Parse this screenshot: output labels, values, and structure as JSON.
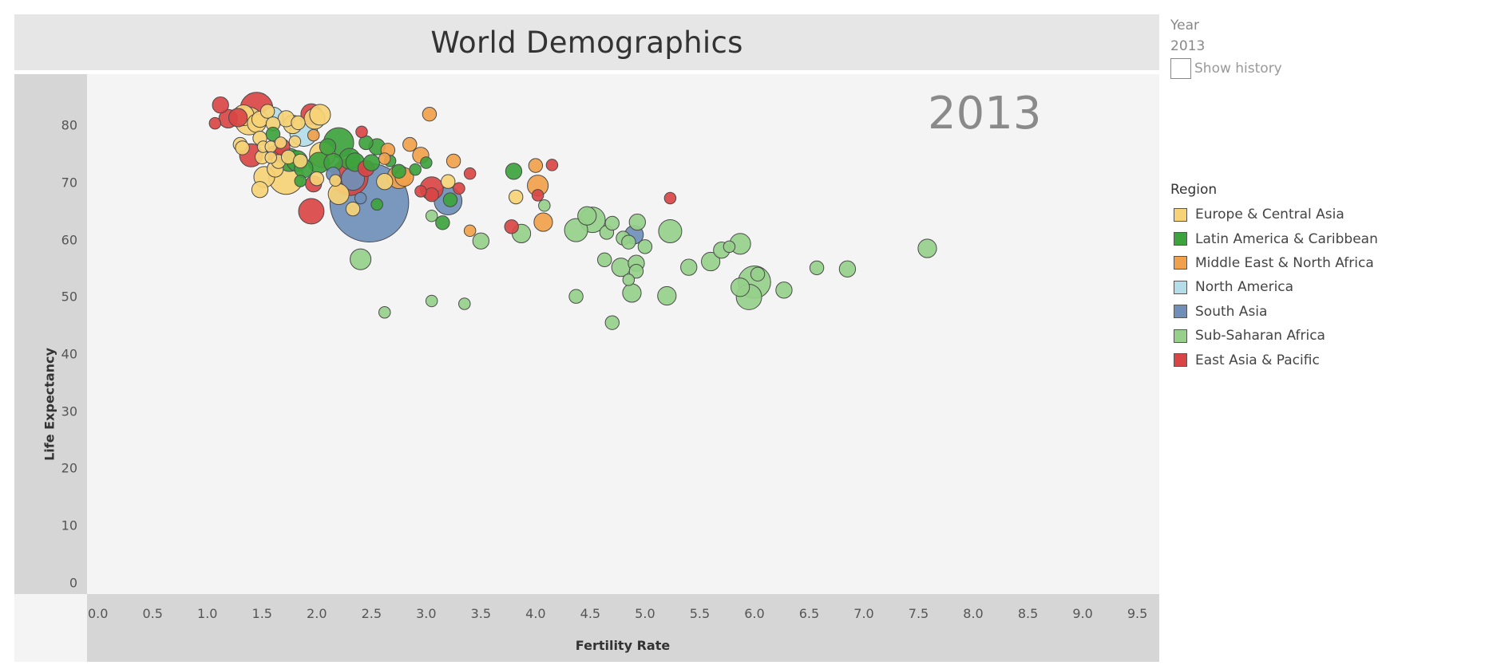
{
  "header": {
    "title": "World Demographics"
  },
  "filters": {
    "year_label": "Year",
    "year_value": "2013",
    "show_history_label": "Show history",
    "show_history_checked": false
  },
  "watermark_year": "2013",
  "legend": {
    "title": "Region",
    "items": [
      {
        "name": "Europe & Central Asia",
        "color": "#f6d376"
      },
      {
        "name": "Latin America & Caribbean",
        "color": "#3da33d"
      },
      {
        "name": "Middle East & North Africa",
        "color": "#f1a14b"
      },
      {
        "name": "North America",
        "color": "#b3dde8"
      },
      {
        "name": "South Asia",
        "color": "#6f8fb8"
      },
      {
        "name": "Sub-Saharan Africa",
        "color": "#96d08a"
      },
      {
        "name": "East Asia & Pacific",
        "color": "#d94545"
      }
    ]
  },
  "chart_data": {
    "type": "scatter",
    "title": "World Demographics",
    "xlabel": "Fertility Rate",
    "ylabel": "Life Expectancy",
    "xlim": [
      -0.1,
      9.7
    ],
    "ylim": [
      -2,
      89
    ],
    "x_ticks": [
      "0.0",
      "0.5",
      "1.0",
      "1.5",
      "2.0",
      "2.5",
      "3.0",
      "3.5",
      "4.0",
      "4.5",
      "5.0",
      "5.5",
      "6.0",
      "6.5",
      "7.0",
      "7.5",
      "8.0",
      "8.5",
      "9.0",
      "9.5"
    ],
    "y_ticks": [
      "0",
      "10",
      "20",
      "30",
      "40",
      "50",
      "60",
      "70",
      "80"
    ],
    "size_encoding": "population",
    "points": [
      {
        "region": "South Asia",
        "x": 2.48,
        "y": 66.5,
        "size": 34
      },
      {
        "region": "South Asia",
        "x": 3.2,
        "y": 66.8,
        "size": 12
      },
      {
        "region": "South Asia",
        "x": 2.33,
        "y": 70.7,
        "size": 10
      },
      {
        "region": "South Asia",
        "x": 2.4,
        "y": 67.3,
        "size": 5
      },
      {
        "region": "South Asia",
        "x": 4.9,
        "y": 60.9,
        "size": 8
      },
      {
        "region": "South Asia",
        "x": 2.15,
        "y": 71.5,
        "size": 6
      },
      {
        "region": "North America",
        "x": 1.88,
        "y": 78.8,
        "size": 12
      },
      {
        "region": "North America",
        "x": 1.6,
        "y": 81.4,
        "size": 9
      },
      {
        "region": "East Asia & Pacific",
        "x": 1.45,
        "y": 83.0,
        "size": 14
      },
      {
        "region": "East Asia & Pacific",
        "x": 1.12,
        "y": 83.6,
        "size": 7
      },
      {
        "region": "East Asia & Pacific",
        "x": 1.07,
        "y": 80.4,
        "size": 5
      },
      {
        "region": "East Asia & Pacific",
        "x": 1.19,
        "y": 81.2,
        "size": 8
      },
      {
        "region": "East Asia & Pacific",
        "x": 1.28,
        "y": 81.4,
        "size": 8
      },
      {
        "region": "East Asia & Pacific",
        "x": 1.95,
        "y": 82.0,
        "size": 9
      },
      {
        "region": "East Asia & Pacific",
        "x": 2.41,
        "y": 78.9,
        "size": 5
      },
      {
        "region": "East Asia & Pacific",
        "x": 1.62,
        "y": 75.1,
        "size": 7
      },
      {
        "region": "East Asia & Pacific",
        "x": 1.68,
        "y": 76.3,
        "size": 7
      },
      {
        "region": "East Asia & Pacific",
        "x": 1.4,
        "y": 74.8,
        "size": 10
      },
      {
        "region": "East Asia & Pacific",
        "x": 2.3,
        "y": 71.0,
        "size": 16
      },
      {
        "region": "East Asia & Pacific",
        "x": 1.95,
        "y": 65.0,
        "size": 11
      },
      {
        "region": "East Asia & Pacific",
        "x": 1.97,
        "y": 69.8,
        "size": 7
      },
      {
        "region": "East Asia & Pacific",
        "x": 2.45,
        "y": 72.5,
        "size": 7
      },
      {
        "region": "East Asia & Pacific",
        "x": 2.95,
        "y": 68.5,
        "size": 5
      },
      {
        "region": "East Asia & Pacific",
        "x": 3.05,
        "y": 69.0,
        "size": 10
      },
      {
        "region": "East Asia & Pacific",
        "x": 3.05,
        "y": 67.9,
        "size": 6
      },
      {
        "region": "East Asia & Pacific",
        "x": 3.3,
        "y": 69.0,
        "size": 5
      },
      {
        "region": "East Asia & Pacific",
        "x": 3.4,
        "y": 71.6,
        "size": 5
      },
      {
        "region": "East Asia & Pacific",
        "x": 3.78,
        "y": 62.3,
        "size": 6
      },
      {
        "region": "East Asia & Pacific",
        "x": 4.02,
        "y": 67.8,
        "size": 5
      },
      {
        "region": "East Asia & Pacific",
        "x": 4.15,
        "y": 73.1,
        "size": 5
      },
      {
        "region": "East Asia & Pacific",
        "x": 5.23,
        "y": 67.3,
        "size": 5
      },
      {
        "region": "Europe & Central Asia",
        "x": 1.33,
        "y": 81.8,
        "size": 9
      },
      {
        "region": "Europe & Central Asia",
        "x": 1.38,
        "y": 80.8,
        "size": 12
      },
      {
        "region": "Europe & Central Asia",
        "x": 1.45,
        "y": 80.4,
        "size": 8
      },
      {
        "region": "Europe & Central Asia",
        "x": 1.48,
        "y": 81.1,
        "size": 7
      },
      {
        "region": "Europe & Central Asia",
        "x": 1.55,
        "y": 82.5,
        "size": 6
      },
      {
        "region": "Europe & Central Asia",
        "x": 1.6,
        "y": 80.3,
        "size": 6
      },
      {
        "region": "Europe & Central Asia",
        "x": 1.72,
        "y": 81.2,
        "size": 7
      },
      {
        "region": "Europe & Central Asia",
        "x": 1.78,
        "y": 80.2,
        "size": 8
      },
      {
        "region": "Europe & Central Asia",
        "x": 1.83,
        "y": 80.5,
        "size": 6
      },
      {
        "region": "Europe & Central Asia",
        "x": 1.98,
        "y": 81.2,
        "size": 9
      },
      {
        "region": "Europe & Central Asia",
        "x": 2.03,
        "y": 81.9,
        "size": 9
      },
      {
        "region": "Europe & Central Asia",
        "x": 1.3,
        "y": 76.7,
        "size": 6
      },
      {
        "region": "Europe & Central Asia",
        "x": 1.32,
        "y": 76.1,
        "size": 6
      },
      {
        "region": "Europe & Central Asia",
        "x": 1.48,
        "y": 77.8,
        "size": 6
      },
      {
        "region": "Europe & Central Asia",
        "x": 1.51,
        "y": 76.3,
        "size": 5
      },
      {
        "region": "Europe & Central Asia",
        "x": 1.58,
        "y": 76.3,
        "size": 5
      },
      {
        "region": "Europe & Central Asia",
        "x": 1.67,
        "y": 77.0,
        "size": 5
      },
      {
        "region": "Europe & Central Asia",
        "x": 1.8,
        "y": 77.2,
        "size": 5
      },
      {
        "region": "Europe & Central Asia",
        "x": 1.58,
        "y": 74.4,
        "size": 5
      },
      {
        "region": "Europe & Central Asia",
        "x": 1.65,
        "y": 73.7,
        "size": 6
      },
      {
        "region": "Europe & Central Asia",
        "x": 1.74,
        "y": 74.5,
        "size": 6
      },
      {
        "region": "Europe & Central Asia",
        "x": 1.5,
        "y": 74.5,
        "size": 6
      },
      {
        "region": "Europe & Central Asia",
        "x": 1.72,
        "y": 71.0,
        "size": 15
      },
      {
        "region": "Europe & Central Asia",
        "x": 1.52,
        "y": 71.0,
        "size": 9
      },
      {
        "region": "Europe & Central Asia",
        "x": 1.62,
        "y": 72.4,
        "size": 7
      },
      {
        "region": "Europe & Central Asia",
        "x": 1.85,
        "y": 73.8,
        "size": 6
      },
      {
        "region": "Europe & Central Asia",
        "x": 1.48,
        "y": 68.8,
        "size": 7
      },
      {
        "region": "Europe & Central Asia",
        "x": 2.05,
        "y": 74.9,
        "size": 11
      },
      {
        "region": "Europe & Central Asia",
        "x": 2.0,
        "y": 70.7,
        "size": 6
      },
      {
        "region": "Europe & Central Asia",
        "x": 2.17,
        "y": 70.4,
        "size": 5
      },
      {
        "region": "Europe & Central Asia",
        "x": 2.2,
        "y": 68.0,
        "size": 9
      },
      {
        "region": "Europe & Central Asia",
        "x": 2.33,
        "y": 65.4,
        "size": 6
      },
      {
        "region": "Europe & Central Asia",
        "x": 2.62,
        "y": 70.2,
        "size": 7
      },
      {
        "region": "Europe & Central Asia",
        "x": 3.2,
        "y": 70.2,
        "size": 6
      },
      {
        "region": "Europe & Central Asia",
        "x": 3.82,
        "y": 67.5,
        "size": 6
      },
      {
        "region": "Latin America & Caribbean",
        "x": 1.75,
        "y": 74.0,
        "size": 10
      },
      {
        "region": "Latin America & Caribbean",
        "x": 1.82,
        "y": 73.8,
        "size": 9
      },
      {
        "region": "Latin America & Caribbean",
        "x": 1.88,
        "y": 72.5,
        "size": 8
      },
      {
        "region": "Latin America & Caribbean",
        "x": 1.85,
        "y": 70.3,
        "size": 5
      },
      {
        "region": "Latin America & Caribbean",
        "x": 1.6,
        "y": 78.5,
        "size": 6
      },
      {
        "region": "Latin America & Caribbean",
        "x": 2.02,
        "y": 73.5,
        "size": 9
      },
      {
        "region": "Latin America & Caribbean",
        "x": 2.15,
        "y": 73.5,
        "size": 8
      },
      {
        "region": "Latin America & Caribbean",
        "x": 2.2,
        "y": 77.0,
        "size": 13
      },
      {
        "region": "Latin America & Caribbean",
        "x": 2.1,
        "y": 76.3,
        "size": 7
      },
      {
        "region": "Latin America & Caribbean",
        "x": 2.3,
        "y": 74.2,
        "size": 9
      },
      {
        "region": "Latin America & Caribbean",
        "x": 2.35,
        "y": 73.6,
        "size": 8
      },
      {
        "region": "Latin America & Caribbean",
        "x": 2.5,
        "y": 73.5,
        "size": 7
      },
      {
        "region": "Latin America & Caribbean",
        "x": 2.45,
        "y": 77.0,
        "size": 6
      },
      {
        "region": "Latin America & Caribbean",
        "x": 2.55,
        "y": 76.3,
        "size": 7
      },
      {
        "region": "Latin America & Caribbean",
        "x": 2.75,
        "y": 72.0,
        "size": 6
      },
      {
        "region": "Latin America & Caribbean",
        "x": 2.67,
        "y": 73.8,
        "size": 5
      },
      {
        "region": "Latin America & Caribbean",
        "x": 2.9,
        "y": 72.3,
        "size": 5
      },
      {
        "region": "Latin America & Caribbean",
        "x": 3.0,
        "y": 73.5,
        "size": 5
      },
      {
        "region": "Latin America & Caribbean",
        "x": 3.22,
        "y": 67.0,
        "size": 6
      },
      {
        "region": "Latin America & Caribbean",
        "x": 3.15,
        "y": 63.0,
        "size": 6
      },
      {
        "region": "Latin America & Caribbean",
        "x": 3.8,
        "y": 72.0,
        "size": 7
      },
      {
        "region": "Latin America & Caribbean",
        "x": 2.55,
        "y": 66.2,
        "size": 5
      },
      {
        "region": "Middle East & North Africa",
        "x": 1.97,
        "y": 78.3,
        "size": 5
      },
      {
        "region": "Middle East & North Africa",
        "x": 2.62,
        "y": 74.2,
        "size": 5
      },
      {
        "region": "Middle East & North Africa",
        "x": 2.65,
        "y": 75.7,
        "size": 6
      },
      {
        "region": "Middle East & North Africa",
        "x": 2.75,
        "y": 71.0,
        "size": 10
      },
      {
        "region": "Middle East & North Africa",
        "x": 2.8,
        "y": 71.0,
        "size": 8
      },
      {
        "region": "Middle East & North Africa",
        "x": 2.85,
        "y": 76.7,
        "size": 6
      },
      {
        "region": "Middle East & North Africa",
        "x": 2.95,
        "y": 74.8,
        "size": 7
      },
      {
        "region": "Middle East & North Africa",
        "x": 3.03,
        "y": 82.0,
        "size": 6
      },
      {
        "region": "Middle East & North Africa",
        "x": 3.25,
        "y": 73.8,
        "size": 6
      },
      {
        "region": "Middle East & North Africa",
        "x": 3.4,
        "y": 61.6,
        "size": 5
      },
      {
        "region": "Middle East & North Africa",
        "x": 4.0,
        "y": 73.0,
        "size": 6
      },
      {
        "region": "Middle East & North Africa",
        "x": 4.02,
        "y": 69.5,
        "size": 9
      },
      {
        "region": "Middle East & North Africa",
        "x": 4.07,
        "y": 63.1,
        "size": 8
      },
      {
        "region": "Sub-Saharan Africa",
        "x": 2.4,
        "y": 56.6,
        "size": 9
      },
      {
        "region": "Sub-Saharan Africa",
        "x": 2.62,
        "y": 47.3,
        "size": 5
      },
      {
        "region": "Sub-Saharan Africa",
        "x": 3.05,
        "y": 49.3,
        "size": 5
      },
      {
        "region": "Sub-Saharan Africa",
        "x": 3.05,
        "y": 64.2,
        "size": 5
      },
      {
        "region": "Sub-Saharan Africa",
        "x": 3.35,
        "y": 48.8,
        "size": 5
      },
      {
        "region": "Sub-Saharan Africa",
        "x": 3.5,
        "y": 59.8,
        "size": 7
      },
      {
        "region": "Sub-Saharan Africa",
        "x": 3.87,
        "y": 61.1,
        "size": 8
      },
      {
        "region": "Sub-Saharan Africa",
        "x": 4.08,
        "y": 66.0,
        "size": 5
      },
      {
        "region": "Sub-Saharan Africa",
        "x": 4.37,
        "y": 50.1,
        "size": 6
      },
      {
        "region": "Sub-Saharan Africa",
        "x": 4.37,
        "y": 61.7,
        "size": 10
      },
      {
        "region": "Sub-Saharan Africa",
        "x": 4.47,
        "y": 64.2,
        "size": 8
      },
      {
        "region": "Sub-Saharan Africa",
        "x": 4.52,
        "y": 63.5,
        "size": 11
      },
      {
        "region": "Sub-Saharan Africa",
        "x": 4.63,
        "y": 56.5,
        "size": 6
      },
      {
        "region": "Sub-Saharan Africa",
        "x": 4.65,
        "y": 61.3,
        "size": 6
      },
      {
        "region": "Sub-Saharan Africa",
        "x": 4.7,
        "y": 62.9,
        "size": 6
      },
      {
        "region": "Sub-Saharan Africa",
        "x": 4.7,
        "y": 45.5,
        "size": 6
      },
      {
        "region": "Sub-Saharan Africa",
        "x": 4.8,
        "y": 60.3,
        "size": 6
      },
      {
        "region": "Sub-Saharan Africa",
        "x": 4.78,
        "y": 55.2,
        "size": 8
      },
      {
        "region": "Sub-Saharan Africa",
        "x": 4.85,
        "y": 59.6,
        "size": 6
      },
      {
        "region": "Sub-Saharan Africa",
        "x": 4.85,
        "y": 53.0,
        "size": 5
      },
      {
        "region": "Sub-Saharan Africa",
        "x": 4.88,
        "y": 50.7,
        "size": 8
      },
      {
        "region": "Sub-Saharan Africa",
        "x": 4.92,
        "y": 55.9,
        "size": 7
      },
      {
        "region": "Sub-Saharan Africa",
        "x": 4.92,
        "y": 54.5,
        "size": 6
      },
      {
        "region": "Sub-Saharan Africa",
        "x": 4.93,
        "y": 63.1,
        "size": 7
      },
      {
        "region": "Sub-Saharan Africa",
        "x": 5.0,
        "y": 58.8,
        "size": 6
      },
      {
        "region": "Sub-Saharan Africa",
        "x": 5.2,
        "y": 50.2,
        "size": 8
      },
      {
        "region": "Sub-Saharan Africa",
        "x": 5.23,
        "y": 61.5,
        "size": 10
      },
      {
        "region": "Sub-Saharan Africa",
        "x": 5.4,
        "y": 55.2,
        "size": 7
      },
      {
        "region": "Sub-Saharan Africa",
        "x": 5.6,
        "y": 56.2,
        "size": 8
      },
      {
        "region": "Sub-Saharan Africa",
        "x": 5.7,
        "y": 58.2,
        "size": 7
      },
      {
        "region": "Sub-Saharan Africa",
        "x": 5.77,
        "y": 58.8,
        "size": 5
      },
      {
        "region": "Sub-Saharan Africa",
        "x": 5.87,
        "y": 59.3,
        "size": 9
      },
      {
        "region": "Sub-Saharan Africa",
        "x": 5.87,
        "y": 51.7,
        "size": 8
      },
      {
        "region": "Sub-Saharan Africa",
        "x": 5.95,
        "y": 50.0,
        "size": 11
      },
      {
        "region": "Sub-Saharan Africa",
        "x": 6.0,
        "y": 52.6,
        "size": 14
      },
      {
        "region": "Sub-Saharan Africa",
        "x": 6.03,
        "y": 54.0,
        "size": 6
      },
      {
        "region": "Sub-Saharan Africa",
        "x": 6.27,
        "y": 51.2,
        "size": 7
      },
      {
        "region": "Sub-Saharan Africa",
        "x": 6.57,
        "y": 55.1,
        "size": 6
      },
      {
        "region": "Sub-Saharan Africa",
        "x": 6.85,
        "y": 54.9,
        "size": 7
      },
      {
        "region": "Sub-Saharan Africa",
        "x": 7.58,
        "y": 58.5,
        "size": 8
      }
    ]
  }
}
